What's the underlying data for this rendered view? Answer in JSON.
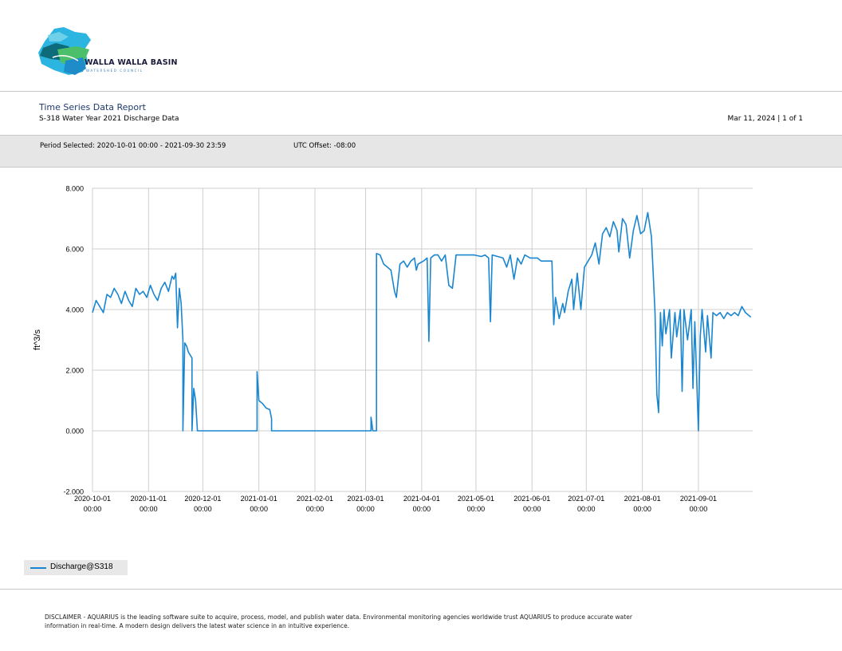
{
  "header": {
    "logo_text": "WALLA WALLA BASIN",
    "logo_subtext": "WATERSHED COUNCIL",
    "logo_colors": [
      "#2bb5e0",
      "#1e8cc8",
      "#4cbf6a",
      "#0e6b7a"
    ]
  },
  "report": {
    "title": "Time Series Data Report",
    "subtitle": "S-318 Water Year 2021 Discharge Data",
    "date_page": "Mar 11, 2024 | 1 of 1",
    "period": "Period Selected: 2020-10-01 00:00 - 2021-09-30 23:59",
    "utc_offset": "UTC Offset: -08:00"
  },
  "chart_data": {
    "type": "line",
    "title": "",
    "xlabel": "",
    "ylabel": "ft^3/s",
    "ylim": [
      -2,
      8
    ],
    "yticks": [
      "8.000",
      "6.000",
      "4.000",
      "2.000",
      "0.000",
      "-2.000"
    ],
    "yticks_values": [
      8,
      6,
      4,
      2,
      0,
      -2
    ],
    "xticks": [
      "2020-10-01",
      "2020-11-01",
      "2020-12-01",
      "2021-01-01",
      "2021-02-01",
      "2021-03-01",
      "2021-04-01",
      "2021-05-01",
      "2021-06-01",
      "2021-07-01",
      "2021-08-01",
      "2021-09-01"
    ],
    "xtick_time": "00:00",
    "xlim": [
      "2020-10-01",
      "2021-09-30"
    ],
    "grid": true,
    "legend_position": "bottom-left",
    "series": [
      {
        "name": "Discharge@S318",
        "color": "#1a86d0",
        "points": [
          [
            "2020-10-01",
            3.9
          ],
          [
            "2020-10-03",
            4.3
          ],
          [
            "2020-10-05",
            4.1
          ],
          [
            "2020-10-07",
            3.9
          ],
          [
            "2020-10-09",
            4.5
          ],
          [
            "2020-10-11",
            4.4
          ],
          [
            "2020-10-13",
            4.7
          ],
          [
            "2020-10-15",
            4.5
          ],
          [
            "2020-10-17",
            4.2
          ],
          [
            "2020-10-19",
            4.6
          ],
          [
            "2020-10-21",
            4.3
          ],
          [
            "2020-10-23",
            4.1
          ],
          [
            "2020-10-25",
            4.7
          ],
          [
            "2020-10-27",
            4.5
          ],
          [
            "2020-10-29",
            4.6
          ],
          [
            "2020-10-31",
            4.4
          ],
          [
            "2020-11-02",
            4.8
          ],
          [
            "2020-11-04",
            4.5
          ],
          [
            "2020-11-06",
            4.3
          ],
          [
            "2020-11-08",
            4.7
          ],
          [
            "2020-11-10",
            4.9
          ],
          [
            "2020-11-12",
            4.6
          ],
          [
            "2020-11-14",
            5.1
          ],
          [
            "2020-11-15",
            5.0
          ],
          [
            "2020-11-16",
            5.2
          ],
          [
            "2020-11-17",
            3.4
          ],
          [
            "2020-11-18",
            4.7
          ],
          [
            "2020-11-19",
            4.2
          ],
          [
            "2020-11-20",
            3.0
          ],
          [
            "2020-11-20",
            0.0
          ],
          [
            "2020-11-21",
            2.9
          ],
          [
            "2020-11-22",
            2.8
          ],
          [
            "2020-11-23",
            2.6
          ],
          [
            "2020-11-24",
            2.5
          ],
          [
            "2020-11-25",
            2.4
          ],
          [
            "2020-11-25",
            0.0
          ],
          [
            "2020-11-26",
            1.4
          ],
          [
            "2020-11-27",
            1.0
          ],
          [
            "2020-11-28",
            0.0
          ],
          [
            "2020-12-31",
            0.0
          ],
          [
            "2020-12-31",
            1.95
          ],
          [
            "2021-01-01",
            1.0
          ],
          [
            "2021-01-03",
            0.9
          ],
          [
            "2021-01-05",
            0.75
          ],
          [
            "2021-01-07",
            0.7
          ],
          [
            "2021-01-08",
            0.4
          ],
          [
            "2021-01-08",
            0.0
          ],
          [
            "2021-03-04",
            0.0
          ],
          [
            "2021-03-04",
            0.45
          ],
          [
            "2021-03-05",
            0.0
          ],
          [
            "2021-03-07",
            0.0
          ],
          [
            "2021-03-07",
            5.85
          ],
          [
            "2021-03-09",
            5.8
          ],
          [
            "2021-03-11",
            5.5
          ],
          [
            "2021-03-13",
            5.4
          ],
          [
            "2021-03-15",
            5.3
          ],
          [
            "2021-03-17",
            4.6
          ],
          [
            "2021-03-18",
            4.4
          ],
          [
            "2021-03-20",
            5.5
          ],
          [
            "2021-03-22",
            5.6
          ],
          [
            "2021-03-24",
            5.4
          ],
          [
            "2021-03-26",
            5.6
          ],
          [
            "2021-03-28",
            5.7
          ],
          [
            "2021-03-29",
            5.3
          ],
          [
            "2021-03-30",
            5.5
          ],
          [
            "2021-04-02",
            5.6
          ],
          [
            "2021-04-04",
            5.7
          ],
          [
            "2021-04-05",
            2.95
          ],
          [
            "2021-04-06",
            5.7
          ],
          [
            "2021-04-08",
            5.8
          ],
          [
            "2021-04-10",
            5.8
          ],
          [
            "2021-04-12",
            5.6
          ],
          [
            "2021-04-14",
            5.8
          ],
          [
            "2021-04-16",
            4.8
          ],
          [
            "2021-04-18",
            4.7
          ],
          [
            "2021-04-20",
            5.8
          ],
          [
            "2021-04-22",
            5.8
          ],
          [
            "2021-04-26",
            5.8
          ],
          [
            "2021-04-30",
            5.8
          ],
          [
            "2021-05-04",
            5.75
          ],
          [
            "2021-05-06",
            5.8
          ],
          [
            "2021-05-08",
            5.7
          ],
          [
            "2021-05-09",
            3.6
          ],
          [
            "2021-05-10",
            5.8
          ],
          [
            "2021-05-13",
            5.75
          ],
          [
            "2021-05-16",
            5.7
          ],
          [
            "2021-05-18",
            5.4
          ],
          [
            "2021-05-20",
            5.8
          ],
          [
            "2021-05-22",
            5.0
          ],
          [
            "2021-05-24",
            5.7
          ],
          [
            "2021-05-26",
            5.5
          ],
          [
            "2021-05-28",
            5.8
          ],
          [
            "2021-05-31",
            5.7
          ],
          [
            "2021-06-04",
            5.7
          ],
          [
            "2021-06-06",
            5.6
          ],
          [
            "2021-06-10",
            5.6
          ],
          [
            "2021-06-12",
            5.6
          ],
          [
            "2021-06-13",
            3.5
          ],
          [
            "2021-06-14",
            4.4
          ],
          [
            "2021-06-16",
            3.7
          ],
          [
            "2021-06-18",
            4.2
          ],
          [
            "2021-06-19",
            3.9
          ],
          [
            "2021-06-21",
            4.6
          ],
          [
            "2021-06-23",
            5.0
          ],
          [
            "2021-06-24",
            4.0
          ],
          [
            "2021-06-26",
            5.2
          ],
          [
            "2021-06-27",
            4.6
          ],
          [
            "2021-06-28",
            4.0
          ],
          [
            "2021-06-30",
            5.4
          ],
          [
            "2021-07-02",
            5.6
          ],
          [
            "2021-07-04",
            5.8
          ],
          [
            "2021-07-06",
            6.2
          ],
          [
            "2021-07-08",
            5.5
          ],
          [
            "2021-07-10",
            6.5
          ],
          [
            "2021-07-12",
            6.7
          ],
          [
            "2021-07-14",
            6.4
          ],
          [
            "2021-07-16",
            6.9
          ],
          [
            "2021-07-18",
            6.6
          ],
          [
            "2021-07-19",
            5.9
          ],
          [
            "2021-07-21",
            7.0
          ],
          [
            "2021-07-23",
            6.8
          ],
          [
            "2021-07-25",
            5.7
          ],
          [
            "2021-07-27",
            6.6
          ],
          [
            "2021-07-29",
            7.1
          ],
          [
            "2021-07-31",
            6.5
          ],
          [
            "2021-08-02",
            6.6
          ],
          [
            "2021-08-04",
            7.2
          ],
          [
            "2021-08-06",
            6.4
          ],
          [
            "2021-08-07",
            5.2
          ],
          [
            "2021-08-08",
            3.9
          ],
          [
            "2021-08-09",
            1.2
          ],
          [
            "2021-08-10",
            0.6
          ],
          [
            "2021-08-11",
            3.9
          ],
          [
            "2021-08-12",
            2.8
          ],
          [
            "2021-08-13",
            4.0
          ],
          [
            "2021-08-14",
            3.2
          ],
          [
            "2021-08-16",
            4.0
          ],
          [
            "2021-08-17",
            2.4
          ],
          [
            "2021-08-19",
            3.9
          ],
          [
            "2021-08-20",
            3.1
          ],
          [
            "2021-08-22",
            4.0
          ],
          [
            "2021-08-23",
            1.3
          ],
          [
            "2021-08-24",
            4.0
          ],
          [
            "2021-08-26",
            3.0
          ],
          [
            "2021-08-28",
            4.0
          ],
          [
            "2021-08-29",
            1.4
          ],
          [
            "2021-08-30",
            3.6
          ],
          [
            "2021-09-01",
            0.0
          ],
          [
            "2021-09-02",
            3.1
          ],
          [
            "2021-09-03",
            4.0
          ],
          [
            "2021-09-05",
            2.6
          ],
          [
            "2021-09-06",
            3.8
          ],
          [
            "2021-09-08",
            2.4
          ],
          [
            "2021-09-09",
            3.9
          ],
          [
            "2021-09-11",
            3.8
          ],
          [
            "2021-09-13",
            3.9
          ],
          [
            "2021-09-15",
            3.7
          ],
          [
            "2021-09-17",
            3.9
          ],
          [
            "2021-09-19",
            3.8
          ],
          [
            "2021-09-21",
            3.9
          ],
          [
            "2021-09-23",
            3.8
          ],
          [
            "2021-09-25",
            4.1
          ],
          [
            "2021-09-27",
            3.9
          ],
          [
            "2021-09-30",
            3.75
          ]
        ]
      }
    ]
  },
  "legend": {
    "label": "Discharge@S318",
    "color": "#1a86d0"
  },
  "footer": {
    "disclaimer": "DISCLAIMER - AQUARIUS is the leading software suite to acquire, process, model, and publish water data. Environmental monitoring agencies worldwide trust AQUARIUS to produce accurate water information in real-time. A modern design delivers the latest water science in an intuitive experience."
  }
}
